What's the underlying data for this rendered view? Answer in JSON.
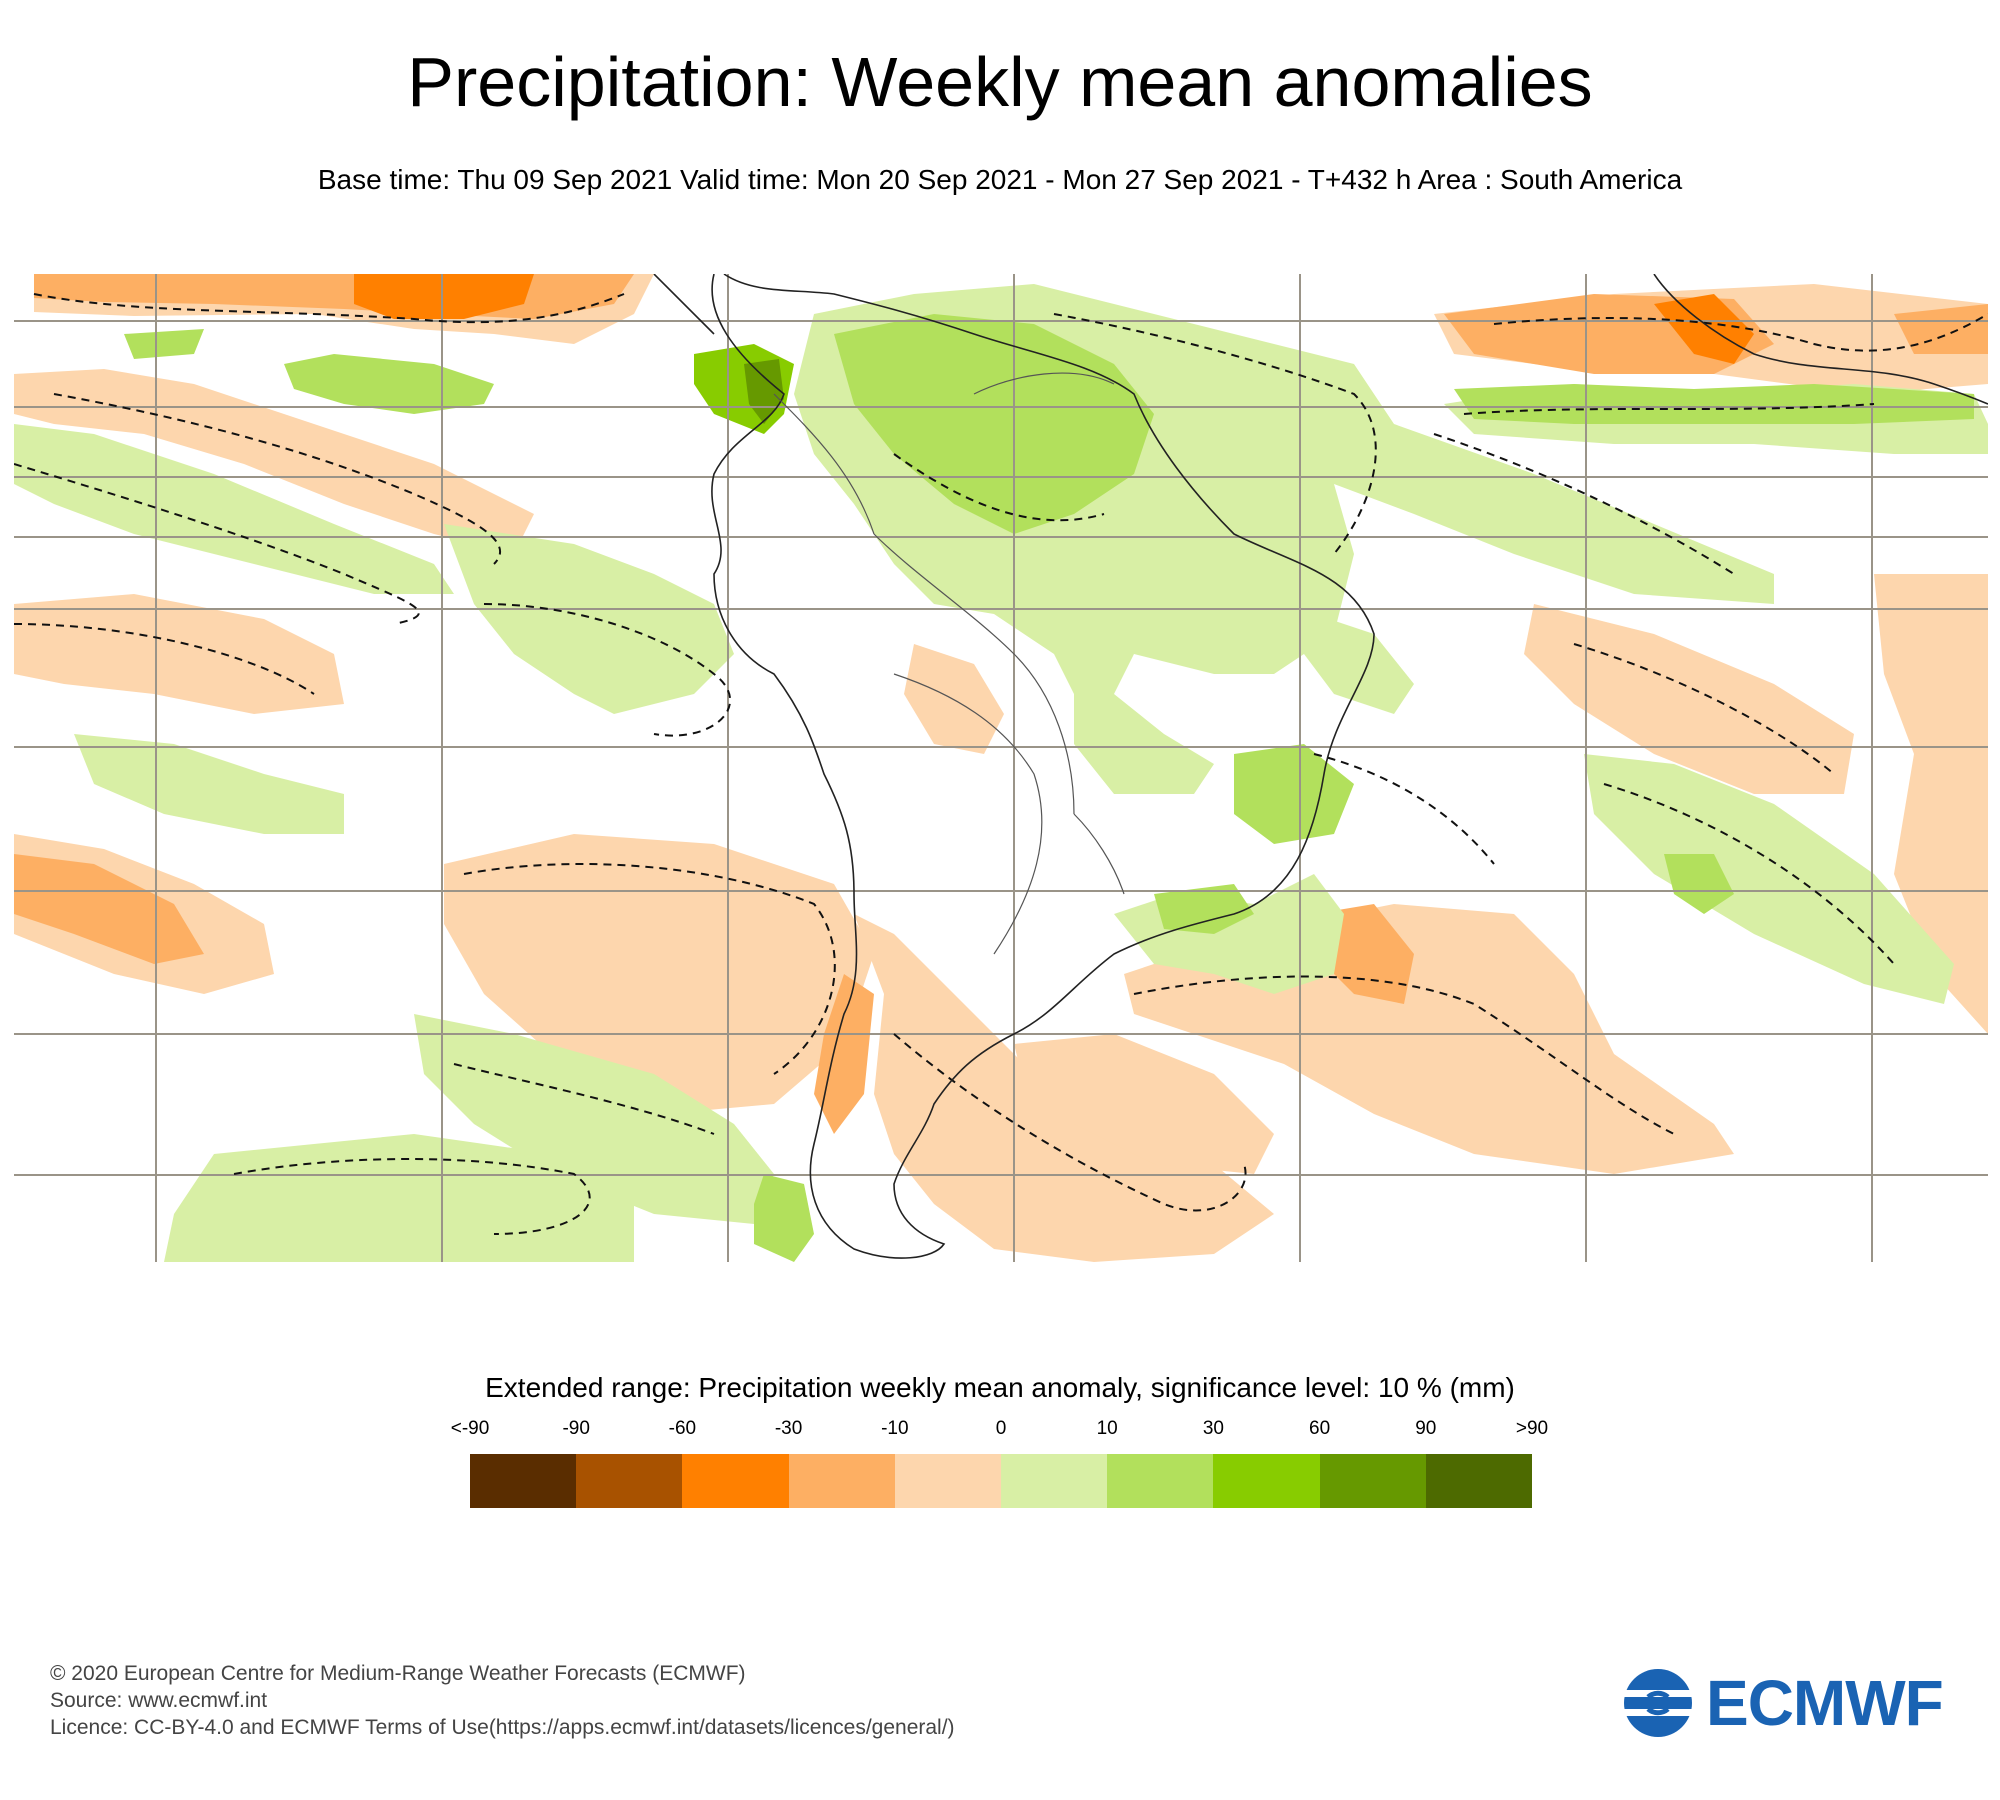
{
  "title": "Precipitation: Weekly mean anomalies",
  "subtitle": "Base time: Thu 09 Sep 2021 Valid time: Mon 20 Sep 2021 - Mon 27 Sep 2021 - T+432 h Area : South America",
  "legend": {
    "title": "Extended range: Precipitation weekly mean anomaly, significance level: 10 % (mm)",
    "ticks": [
      "<-90",
      "-90",
      "-60",
      "-30",
      "-10",
      "0",
      "10",
      "30",
      "60",
      "90",
      ">90"
    ],
    "colors": [
      "#5a2d00",
      "#a85200",
      "#ff8000",
      "#fdaf63",
      "#fdd6ad",
      "#d8efa5",
      "#b2e05c",
      "#88cc00",
      "#669900",
      "#4d6a00"
    ]
  },
  "colors": {
    "dry_light": "#fdd6ad",
    "dry_mid": "#fdaf63",
    "dry_strong": "#ff8000",
    "wet_light": "#d8efa5",
    "wet_mid": "#b2e05c",
    "wet_strong": "#88cc00",
    "wet_dark": "#669900",
    "brand_blue": "#1a63b3"
  },
  "footer": {
    "copyright": "© 2020 European Centre for Medium-Range Weather Forecasts (ECMWF)",
    "source": "Source: www.ecmwf.int",
    "licence": "Licence: CC-BY-4.0 and ECMWF Terms of Use(https://apps.ecmwf.int/datasets/licences/general/)"
  },
  "logo": {
    "text": "ECMWF"
  }
}
